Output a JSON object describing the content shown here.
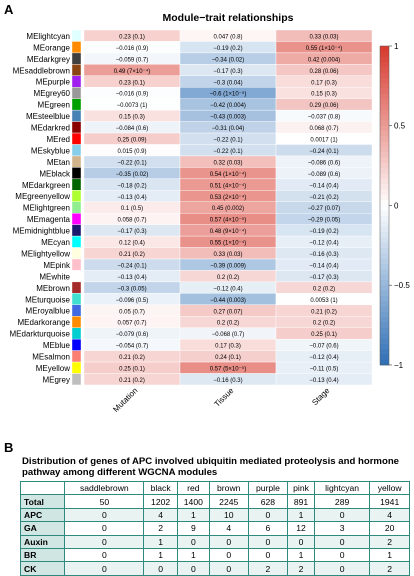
{
  "panel_a_letter": "A",
  "panel_b_letter": "B",
  "chart_data": {
    "type": "heatmap",
    "title": "Module−trait relationships",
    "columns": [
      "Mutation",
      "Tissue",
      "Stage"
    ],
    "rows": [
      {
        "module": "MElightcyan",
        "color": "#e0ffff",
        "values": [
          0.23,
          0.047,
          0.33
        ],
        "labels": [
          "0.23 (0.1)",
          "0.047 (0.8)",
          "0.33 (0.03)"
        ]
      },
      {
        "module": "MEorange",
        "color": "#ff8c00",
        "values": [
          -0.016,
          -0.19,
          0.55
        ],
        "labels": [
          "−0.016 (0.9)",
          "−0.19 (0.2)",
          "0.55 (1×10⁻⁴)"
        ]
      },
      {
        "module": "MEdarkgrey",
        "color": "#404040",
        "values": [
          -0.059,
          -0.34,
          0.42
        ],
        "labels": [
          "−0.059 (0.7)",
          "−0.34 (0.02)",
          "0.42 (0.004)"
        ]
      },
      {
        "module": "MEsaddlebrown",
        "color": "#8b4513",
        "values": [
          0.49,
          -0.17,
          0.28
        ],
        "labels": [
          "0.49 (7×10⁻⁴)",
          "−0.17 (0.3)",
          "0.28 (0.06)"
        ]
      },
      {
        "module": "MEpurple",
        "color": "#a020f0",
        "values": [
          0.23,
          -0.3,
          0.17
        ],
        "labels": [
          "0.23 (0.1)",
          "−0.3 (0.04)",
          "0.17 (0.3)"
        ]
      },
      {
        "module": "MEgrey60",
        "color": "#999999",
        "values": [
          -0.016,
          -0.6,
          0.15
        ],
        "labels": [
          "−0.016 (0.9)",
          "−0.6 (1×10⁻⁵)",
          "0.15 (0.3)"
        ]
      },
      {
        "module": "MEgreen",
        "color": "#00a000",
        "values": [
          -0.0073,
          -0.42,
          0.29
        ],
        "labels": [
          "−0.0073 (1)",
          "−0.42 (0.004)",
          "0.29 (0.06)"
        ]
      },
      {
        "module": "MEsteelblue",
        "color": "#4682b4",
        "values": [
          0.15,
          -0.43,
          -0.037
        ],
        "labels": [
          "0.15 (0.3)",
          "−0.43 (0.003)",
          "−0.037 (0.8)"
        ]
      },
      {
        "module": "MEdarkred",
        "color": "#8b0000",
        "values": [
          -0.084,
          -0.31,
          0.068
        ],
        "labels": [
          "−0.084 (0.6)",
          "−0.31 (0.04)",
          "0.068 (0.7)"
        ]
      },
      {
        "module": "MEred",
        "color": "#ff0000",
        "values": [
          0.25,
          -0.22,
          0.0017
        ],
        "labels": [
          "0.25 (0.09)",
          "−0.22 (0.1)",
          "0.0017 (1)"
        ]
      },
      {
        "module": "MEskyblue",
        "color": "#87ceeb",
        "values": [
          0.015,
          -0.22,
          -0.24
        ],
        "labels": [
          "0.015 (0.9)",
          "−0.22 (0.1)",
          "−0.24 (0.1)"
        ]
      },
      {
        "module": "MEtan",
        "color": "#d2b48c",
        "values": [
          -0.22,
          0.32,
          -0.086
        ],
        "labels": [
          "−0.22 (0.1)",
          "0.32 (0.03)",
          "−0.086 (0.6)"
        ]
      },
      {
        "module": "MEblack",
        "color": "#000000",
        "values": [
          -0.35,
          0.54,
          -0.089
        ],
        "labels": [
          "−0.35 (0.02)",
          "0.54 (1×10⁻⁴)",
          "−0.089 (0.6)"
        ]
      },
      {
        "module": "MEdarkgreen",
        "color": "#006400",
        "values": [
          -0.18,
          0.51,
          -0.14
        ],
        "labels": [
          "−0.18 (0.2)",
          "0.51 (4×10⁻⁴)",
          "−0.14 (0.4)"
        ]
      },
      {
        "module": "MEgreenyellow",
        "color": "#adff2f",
        "values": [
          -0.13,
          0.53,
          -0.21
        ],
        "labels": [
          "−0.13 (0.4)",
          "0.53 (2×10⁻⁴)",
          "−0.21 (0.2)"
        ]
      },
      {
        "module": "MElightgreen",
        "color": "#90ee90",
        "values": [
          0.1,
          0.45,
          -0.27
        ],
        "labels": [
          "0.1 (0.5)",
          "0.45 (0.002)",
          "−0.27 (0.07)"
        ]
      },
      {
        "module": "MEmagenta",
        "color": "#ff00ff",
        "values": [
          0.058,
          0.57,
          -0.29
        ],
        "labels": [
          "0.058 (0.7)",
          "0.57 (4×10⁻⁵)",
          "−0.29 (0.05)"
        ]
      },
      {
        "module": "MEmidnightblue",
        "color": "#191970",
        "values": [
          -0.17,
          0.48,
          -0.19
        ],
        "labels": [
          "−0.17 (0.3)",
          "0.48 (9×10⁻⁴)",
          "−0.19 (0.2)"
        ]
      },
      {
        "module": "MEcyan",
        "color": "#00ffff",
        "values": [
          0.12,
          0.55,
          -0.12
        ],
        "labels": [
          "0.12 (0.4)",
          "0.55 (1×10⁻⁴)",
          "−0.12 (0.4)"
        ]
      },
      {
        "module": "MElightyellow",
        "color": "#ffffe0",
        "values": [
          0.21,
          0.33,
          -0.16
        ],
        "labels": [
          "0.21 (0.2)",
          "0.33 (0.03)",
          "−0.16 (0.3)"
        ]
      },
      {
        "module": "MEpink",
        "color": "#ffc0cb",
        "values": [
          -0.24,
          -0.39,
          -0.14
        ],
        "labels": [
          "−0.24 (0.1)",
          "−0.39 (0.009)",
          "−0.14 (0.4)"
        ]
      },
      {
        "module": "MEwhite",
        "color": "#ffffff",
        "values": [
          -0.13,
          0.2,
          -0.17
        ],
        "labels": [
          "−0.13 (0.4)",
          "0.2 (0.2)",
          "−0.17 (0.3)"
        ]
      },
      {
        "module": "MEbrown",
        "color": "#a52a2a",
        "values": [
          -0.3,
          -0.12,
          0.2
        ],
        "labels": [
          "−0.3 (0.05)",
          "−0.12 (0.4)",
          "0.2 (0.2)"
        ]
      },
      {
        "module": "MEturquoise",
        "color": "#40e0d0",
        "values": [
          -0.096,
          -0.44,
          0.0053
        ],
        "labels": [
          "−0.096 (0.5)",
          "−0.44 (0.003)",
          "0.0053 (1)"
        ]
      },
      {
        "module": "MEroyalblue",
        "color": "#4169e1",
        "values": [
          0.05,
          0.27,
          0.21
        ],
        "labels": [
          "0.05 (0.7)",
          "0.27 (0.07)",
          "0.21 (0.2)"
        ]
      },
      {
        "module": "MEdarkorange",
        "color": "#ff8c00",
        "values": [
          0.057,
          0.2,
          0.2
        ],
        "labels": [
          "0.057 (0.7)",
          "0.2 (0.2)",
          "0.2 (0.2)"
        ]
      },
      {
        "module": "MEdarkturquoise",
        "color": "#00ced1",
        "values": [
          -0.079,
          -0.068,
          0.25
        ],
        "labels": [
          "−0.079 (0.6)",
          "−0.068 (0.7)",
          "0.25 (0.1)"
        ]
      },
      {
        "module": "MEblue",
        "color": "#0000ff",
        "values": [
          -0.054,
          0.17,
          -0.07
        ],
        "labels": [
          "−0.054 (0.7)",
          "0.17 (0.3)",
          "−0.07 (0.6)"
        ]
      },
      {
        "module": "MEsalmon",
        "color": "#fa8072",
        "values": [
          0.21,
          0.24,
          -0.12
        ],
        "labels": [
          "0.21 (0.2)",
          "0.24 (0.1)",
          "−0.12 (0.4)"
        ]
      },
      {
        "module": "MEyellow",
        "color": "#ffff00",
        "values": [
          0.25,
          0.57,
          -0.11
        ],
        "labels": [
          "0.25 (0.1)",
          "0.57 (5×10⁻⁵)",
          "−0.11 (0.5)"
        ]
      },
      {
        "module": "MEgrey",
        "color": "#bebebe",
        "values": [
          0.21,
          -0.16,
          -0.13
        ],
        "labels": [
          "0.21 (0.2)",
          "−0.16 (0.3)",
          "−0.13 (0.4)"
        ]
      }
    ],
    "colorscale": {
      "min": -1,
      "max": 1,
      "low_color": "#2f6fb5",
      "mid_color": "#ffffff",
      "high_color": "#d7382c"
    },
    "legend_ticks": [
      {
        "value": 1,
        "label": "1"
      },
      {
        "value": 0.5,
        "label": "0.5"
      },
      {
        "value": 0,
        "label": "0"
      },
      {
        "value": -0.5,
        "label": "−0.5"
      },
      {
        "value": -1,
        "label": "−1"
      }
    ]
  },
  "table": {
    "title": "Distribution of genes of APC involved ubiquitin mediated proteolysis and hormone pathway among  different WGCNA modules",
    "columns": [
      "saddlebrown",
      "black",
      "red",
      "brown",
      "purple",
      "pink",
      "lightcyan",
      "yellow"
    ],
    "rows": [
      {
        "label": "Total",
        "values": [
          "50",
          "1202",
          "1400",
          "2245",
          "628",
          "891",
          "289",
          "1941"
        ]
      },
      {
        "label": "APC",
        "values": [
          "0",
          "4",
          "1",
          "10",
          "0",
          "1",
          "0",
          "4"
        ]
      },
      {
        "label": "GA",
        "values": [
          "0",
          "2",
          "9",
          "4",
          "6",
          "12",
          "3",
          "20"
        ]
      },
      {
        "label": "Auxin",
        "values": [
          "0",
          "1",
          "0",
          "0",
          "0",
          "0",
          "0",
          "2"
        ]
      },
      {
        "label": "BR",
        "values": [
          "0",
          "1",
          "1",
          "0",
          "0",
          "1",
          "0",
          "1"
        ]
      },
      {
        "label": "CK",
        "values": [
          "0",
          "0",
          "0",
          "0",
          "2",
          "2",
          "0",
          "2"
        ]
      }
    ]
  }
}
